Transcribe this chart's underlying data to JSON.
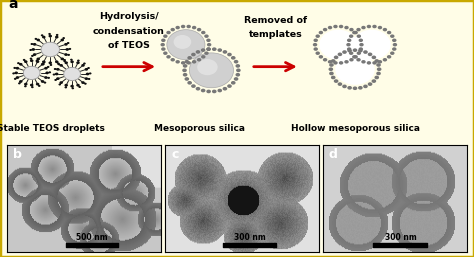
{
  "figure_bg": "#fffde7",
  "border_color": "#c8a800",
  "panel_a_label": "a",
  "panel_b_label": "b",
  "panel_c_label": "c",
  "panel_d_label": "d",
  "label1": "Stable TEOS droplets",
  "label2": "Mesoporous silica",
  "label3": "Hollow mesoporous silica",
  "arrow1_line1": "Hydrolysis/",
  "arrow1_line2": "condensation",
  "arrow1_line3": "of TEOS",
  "arrow2_line1": "Removed of",
  "arrow2_line2": "templates",
  "arrow_color": "#cc0000",
  "scale_bar_b": "500 nm",
  "scale_bar_c": "300 nm",
  "scale_bar_d": "300 nm",
  "text_color": "#000000",
  "label_font_size": 6.5,
  "panel_label_font_size": 9
}
